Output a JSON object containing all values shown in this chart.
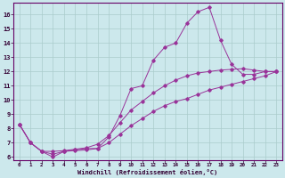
{
  "title": "",
  "xlabel": "Windchill (Refroidissement éolien,°C)",
  "ylabel": "",
  "bg_color": "#cce8ec",
  "grid_color": "#aacccc",
  "line_color": "#993399",
  "spine_color": "#660066",
  "xlim": [
    -0.5,
    23.5
  ],
  "ylim": [
    5.8,
    16.8
  ],
  "yticks": [
    6,
    7,
    8,
    9,
    10,
    11,
    12,
    13,
    14,
    15,
    16
  ],
  "xticks": [
    0,
    1,
    2,
    3,
    4,
    5,
    6,
    7,
    8,
    9,
    10,
    11,
    12,
    13,
    14,
    15,
    16,
    17,
    18,
    19,
    20,
    21,
    22,
    23
  ],
  "line1_x": [
    0,
    1,
    2,
    3,
    4,
    5,
    6,
    7,
    8,
    9,
    10,
    11,
    12,
    13,
    14,
    15,
    16,
    17,
    18,
    19,
    20,
    21,
    22,
    23
  ],
  "line1_y": [
    8.3,
    7.0,
    6.4,
    6.0,
    6.4,
    6.5,
    6.6,
    6.6,
    7.4,
    8.9,
    10.8,
    11.0,
    12.8,
    13.7,
    14.0,
    15.4,
    16.2,
    16.5,
    14.2,
    12.5,
    11.8,
    11.8,
    12.0,
    12.0
  ],
  "line2_x": [
    0,
    1,
    2,
    3,
    4,
    5,
    6,
    7,
    8,
    9,
    10,
    11,
    12,
    13,
    14,
    15,
    16,
    17,
    18,
    19,
    20,
    21,
    22,
    23
  ],
  "line2_y": [
    8.3,
    7.0,
    6.4,
    6.4,
    6.45,
    6.55,
    6.65,
    6.9,
    7.5,
    8.4,
    9.3,
    9.9,
    10.5,
    11.0,
    11.4,
    11.7,
    11.9,
    12.0,
    12.1,
    12.15,
    12.2,
    12.1,
    12.0,
    12.0
  ],
  "line3_x": [
    0,
    1,
    2,
    3,
    4,
    5,
    6,
    7,
    8,
    9,
    10,
    11,
    12,
    13,
    14,
    15,
    16,
    17,
    18,
    19,
    20,
    21,
    22,
    23
  ],
  "line3_y": [
    8.3,
    7.0,
    6.4,
    6.2,
    6.4,
    6.45,
    6.5,
    6.6,
    7.0,
    7.6,
    8.2,
    8.7,
    9.2,
    9.6,
    9.9,
    10.1,
    10.4,
    10.7,
    10.9,
    11.1,
    11.3,
    11.5,
    11.7,
    12.0
  ]
}
